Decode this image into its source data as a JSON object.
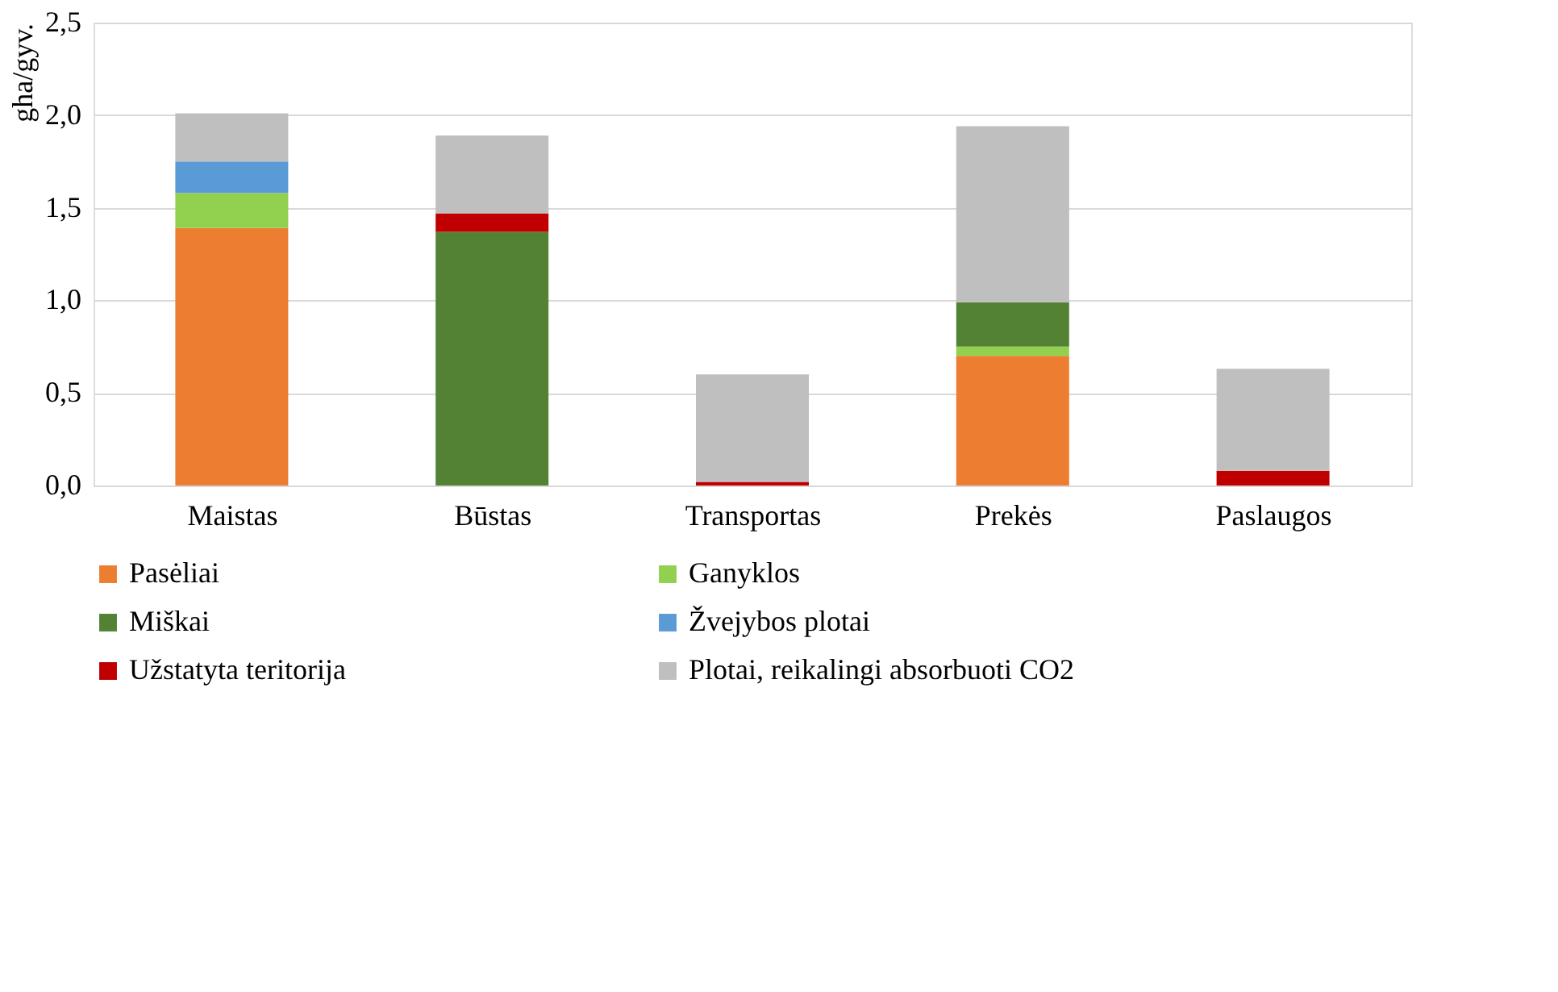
{
  "chart_data": {
    "type": "bar",
    "stacked": true,
    "ylabel": "gha/gyv.",
    "categories": [
      "Maistas",
      "Būstas",
      "Transportas",
      "Prekės",
      "Paslaugos"
    ],
    "series": [
      {
        "name": "Pasėliai",
        "color": "#ed7d31",
        "values": [
          1.39,
          null,
          null,
          0.7,
          null
        ]
      },
      {
        "name": "Ganyklos",
        "color": "#92d050",
        "values": [
          0.19,
          null,
          null,
          0.05,
          null
        ]
      },
      {
        "name": "Miškai",
        "color": "#548235",
        "values": [
          null,
          1.37,
          null,
          0.24,
          null
        ]
      },
      {
        "name": "Žvejybos plotai",
        "color": "#5b9bd5",
        "values": [
          0.17,
          null,
          null,
          null,
          null
        ]
      },
      {
        "name": "Užstatyta teritorija",
        "color": "#c00000",
        "values": [
          null,
          0.1,
          0.02,
          null,
          0.08
        ]
      },
      {
        "name": "Plotai, reikalingi absorbuoti CO2",
        "color": "#bfbfbf",
        "values": [
          0.26,
          0.42,
          0.58,
          0.95,
          0.55
        ]
      }
    ],
    "ylim": [
      0,
      2.5
    ],
    "yticks": [
      {
        "value": 0,
        "label": "0,0"
      },
      {
        "value": 0.5,
        "label": "0,5"
      },
      {
        "value": 1,
        "label": "1,0"
      },
      {
        "value": 1.5,
        "label": "1,5"
      },
      {
        "value": 2,
        "label": "2,0"
      },
      {
        "value": 2.5,
        "label": "2,5"
      }
    ],
    "grid": "y",
    "legend": "bottom"
  }
}
